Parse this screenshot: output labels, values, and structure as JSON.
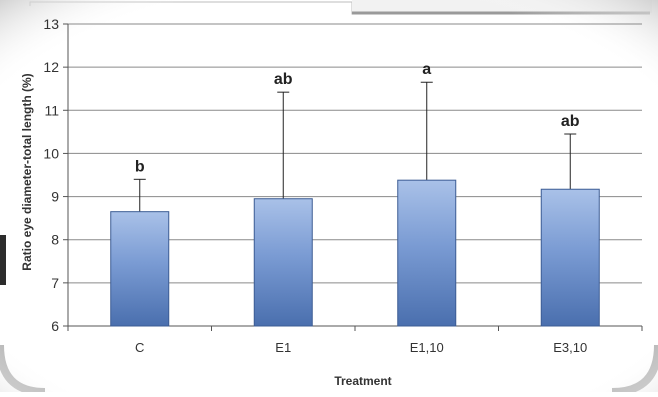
{
  "chart_data": {
    "type": "bar",
    "title": "",
    "xlabel": "Treatment",
    "ylabel": "Ratio eye diameter-total length (%)",
    "categories": [
      "C",
      "E1",
      "E1,10",
      "E3,10"
    ],
    "values": [
      8.65,
      8.95,
      9.38,
      9.17
    ],
    "error_upper": [
      9.4,
      11.42,
      11.65,
      10.45
    ],
    "significance_labels": [
      "b",
      "ab",
      "a",
      "ab"
    ],
    "ylim": [
      6,
      13
    ],
    "yticks": [
      "6",
      "7",
      "8",
      "9",
      "10",
      "11",
      "12",
      "13"
    ],
    "grid": true,
    "legend": "none",
    "colors": {
      "bar_top": "#a9c1e8",
      "bar_mid": "#7a9bd3",
      "bar_bottom": "#4a6fae",
      "bar_stroke": "#3c5c94",
      "grid": "#8a8a8a",
      "text": "#333333"
    }
  }
}
